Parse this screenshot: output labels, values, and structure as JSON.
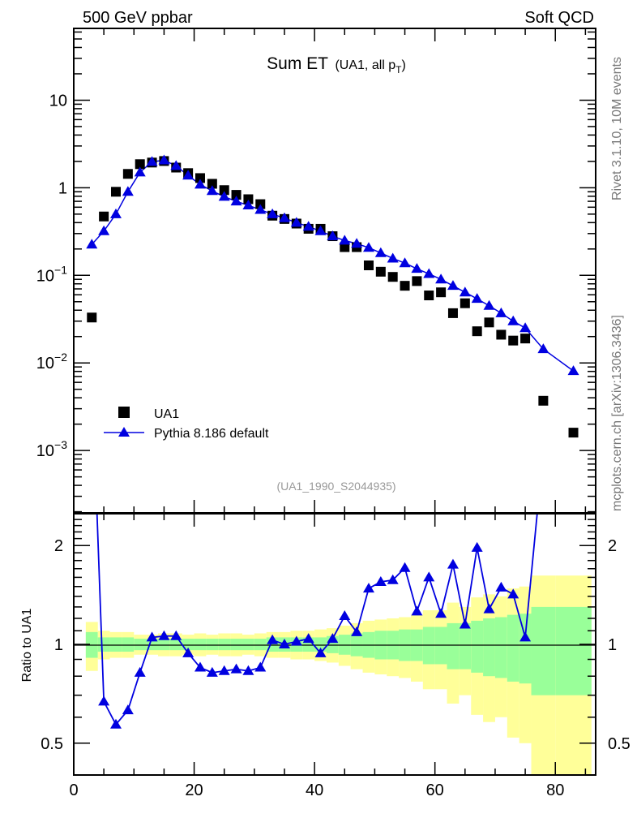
{
  "header": {
    "left": "500 GeV ppbar",
    "right": "Soft QCD"
  },
  "side_labels": {
    "rivet": "Rivet 3.1.10,  10M events",
    "mcplots": "mcplots.cern.ch [arXiv:1306.3436]"
  },
  "analysis_id": "(UA1_1990_S2044935)",
  "colors": {
    "data": "#000000",
    "mc": "#0000e0",
    "band_stat": "#99ff99",
    "band_total": "#ffff99"
  },
  "chart_data": [
    {
      "type": "scatter",
      "title": "Sum ET",
      "title_sub": "(UA1, all p",
      "title_sub_index": "T",
      "title_sub_close": ")",
      "xlim": [
        0,
        86.7
      ],
      "ylim": [
        0.000194,
        66
      ],
      "yscale": "log",
      "x_ticks": [
        0,
        20,
        40,
        60,
        80
      ],
      "y_tick_labels": [
        {
          "value": 10,
          "base": "10",
          "exp": ""
        },
        {
          "value": 1,
          "base": "1",
          "exp": ""
        },
        {
          "value": 0.1,
          "base": "10",
          "exp": "−1"
        },
        {
          "value": 0.01,
          "base": "10",
          "exp": "−2"
        },
        {
          "value": 0.001,
          "base": "10",
          "exp": "−3"
        }
      ],
      "legend_position": "bottom-left",
      "x": [
        3,
        5,
        7,
        9,
        11,
        13,
        15,
        17,
        19,
        21,
        23,
        25,
        27,
        29,
        31,
        33,
        35,
        37,
        39,
        41,
        43,
        45,
        47,
        49,
        51,
        53,
        55,
        57,
        59,
        61,
        63,
        65,
        67,
        69,
        71,
        73,
        75,
        78,
        83
      ],
      "series": [
        {
          "name": "UA1",
          "marker": "square",
          "values": [
            0.033,
            0.47,
            0.9,
            1.44,
            1.86,
            1.94,
            2.02,
            1.7,
            1.47,
            1.29,
            1.11,
            0.94,
            0.83,
            0.74,
            0.65,
            0.48,
            0.44,
            0.39,
            0.34,
            0.34,
            0.28,
            0.21,
            0.21,
            0.13,
            0.11,
            0.096,
            0.076,
            0.086,
            0.059,
            0.064,
            0.037,
            0.048,
            0.023,
            0.029,
            0.021,
            0.018,
            0.019,
            0.0037,
            0.0016
          ]
        },
        {
          "name": "Pythia 8.186 default",
          "marker": "triangle",
          "line": true,
          "values": [
            0.225,
            0.32,
            0.5,
            0.9,
            1.5,
            1.98,
            2.06,
            1.78,
            1.38,
            1.09,
            0.92,
            0.79,
            0.7,
            0.63,
            0.56,
            0.5,
            0.45,
            0.4,
            0.36,
            0.32,
            0.28,
            0.25,
            0.23,
            0.207,
            0.18,
            0.156,
            0.138,
            0.119,
            0.104,
            0.09,
            0.076,
            0.064,
            0.054,
            0.045,
            0.037,
            0.03,
            0.025,
            0.0144,
            0.0081
          ]
        }
      ]
    },
    {
      "type": "line",
      "ylabel": "Ratio to UA1",
      "xlim": [
        0,
        86.7
      ],
      "ylim": [
        0.4,
        2.5
      ],
      "yscale": "log",
      "y_tick_labels": [
        "0.5",
        "1",
        "2"
      ],
      "y_ticks": [
        0.5,
        1,
        2
      ],
      "bin_edges": [
        2,
        4,
        6,
        8,
        10,
        12,
        14,
        16,
        18,
        20,
        22,
        24,
        26,
        28,
        30,
        32,
        34,
        36,
        38,
        40,
        42,
        44,
        46,
        48,
        50,
        52,
        54,
        56,
        58,
        60,
        62,
        64,
        66,
        68,
        70,
        72,
        74,
        76,
        80,
        86
      ],
      "band_stat_rel": [
        0.09,
        0.05,
        0.05,
        0.05,
        0.04,
        0.04,
        0.04,
        0.04,
        0.04,
        0.04,
        0.04,
        0.04,
        0.04,
        0.04,
        0.04,
        0.05,
        0.05,
        0.05,
        0.05,
        0.05,
        0.06,
        0.07,
        0.08,
        0.09,
        0.1,
        0.1,
        0.11,
        0.11,
        0.13,
        0.13,
        0.16,
        0.16,
        0.18,
        0.2,
        0.21,
        0.23,
        0.24,
        0.3,
        0.3
      ],
      "band_total_rel": [
        0.17,
        0.1,
        0.09,
        0.09,
        0.07,
        0.07,
        0.08,
        0.08,
        0.07,
        0.08,
        0.07,
        0.08,
        0.08,
        0.07,
        0.08,
        0.09,
        0.09,
        0.1,
        0.1,
        0.11,
        0.12,
        0.14,
        0.16,
        0.18,
        0.19,
        0.2,
        0.21,
        0.23,
        0.27,
        0.27,
        0.34,
        0.3,
        0.39,
        0.42,
        0.4,
        0.48,
        0.5,
        0.62,
        0.62
      ],
      "ratio_values": [
        6.8,
        0.67,
        0.57,
        0.63,
        0.82,
        1.05,
        1.06,
        1.06,
        0.94,
        0.85,
        0.82,
        0.83,
        0.84,
        0.83,
        0.85,
        1.03,
        1.0,
        1.02,
        1.04,
        0.94,
        1.04,
        1.22,
        1.09,
        1.48,
        1.55,
        1.57,
        1.71,
        1.26,
        1.6,
        1.24,
        1.75,
        1.15,
        1.97,
        1.28,
        1.49,
        1.42,
        1.05,
        3.9,
        5.1
      ]
    }
  ]
}
